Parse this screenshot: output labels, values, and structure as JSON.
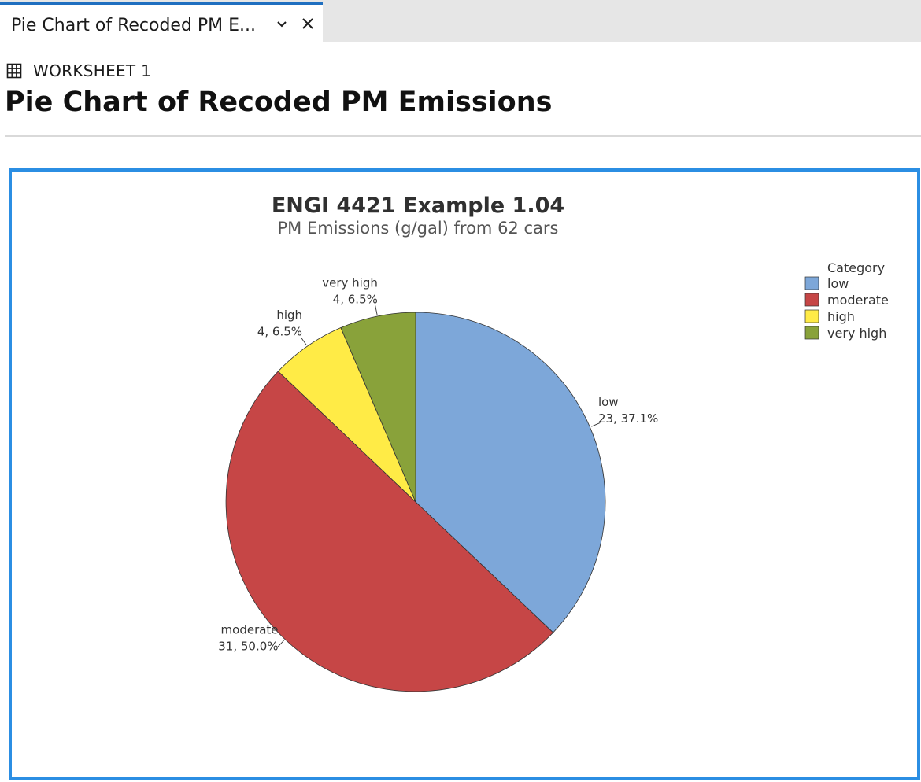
{
  "tab": {
    "title": "Pie Chart of Recoded PM E...",
    "dropdown_icon": "chevron-down-icon",
    "close_icon": "close-icon"
  },
  "worksheet": {
    "icon": "table-grid-icon",
    "label": "WORKSHEET 1"
  },
  "page": {
    "title": "Pie Chart of Recoded PM Emissions"
  },
  "chart_data": {
    "type": "pie",
    "title": "ENGI 4421 Example 1.04",
    "subtitle": "PM Emissions (g/gal) from 62 cars",
    "legend_title": "Category",
    "legend_position": "top-right",
    "slices": [
      {
        "name": "low",
        "value": 23,
        "percent": 37.1,
        "label": "23, 37.1%",
        "color": "#7da7d9"
      },
      {
        "name": "moderate",
        "value": 31,
        "percent": 50.0,
        "label": "31, 50.0%",
        "color": "#c64646"
      },
      {
        "name": "high",
        "value": 4,
        "percent": 6.5,
        "label": "4, 6.5%",
        "color": "#ffeb46"
      },
      {
        "name": "very high",
        "value": 4,
        "percent": 6.5,
        "label": "4, 6.5%",
        "color": "#89a23a"
      }
    ]
  }
}
